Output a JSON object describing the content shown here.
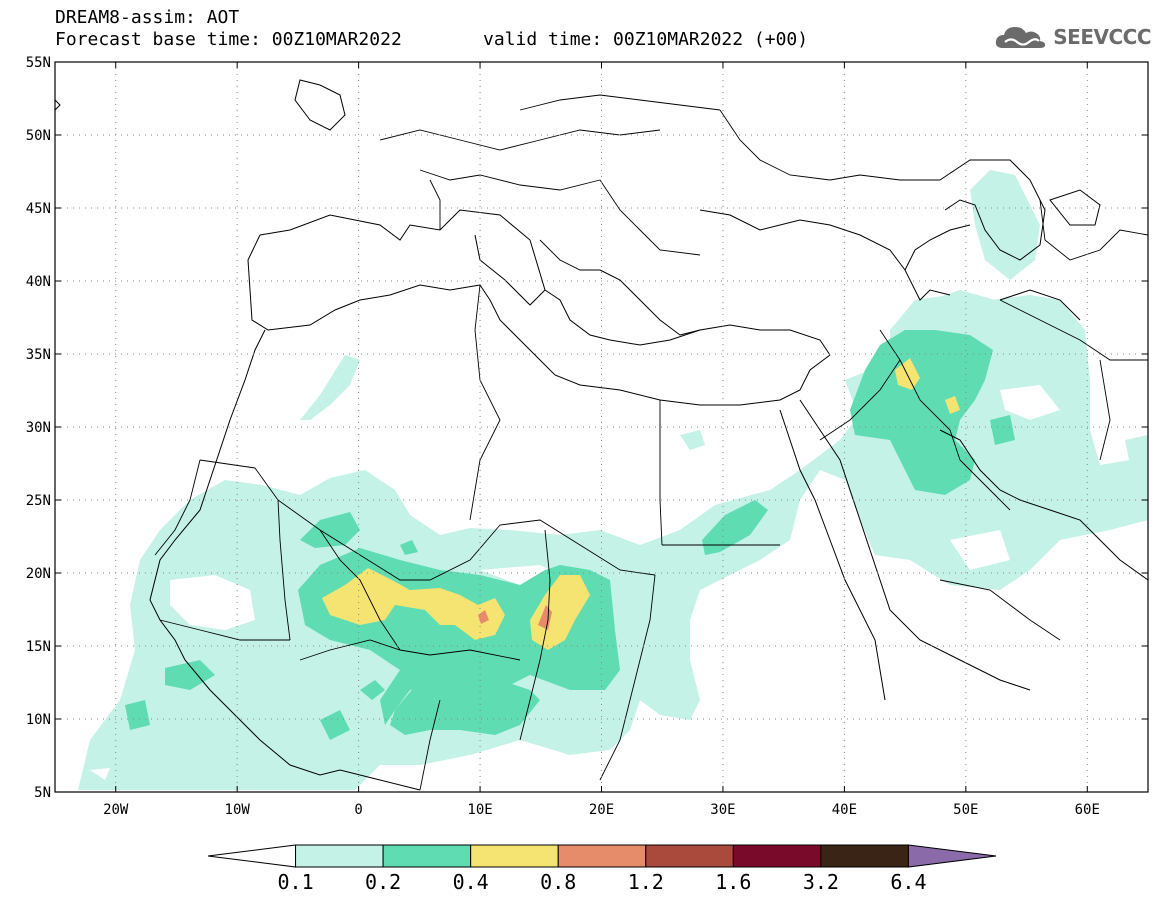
{
  "title": {
    "line1": "DREAM8-assim: AOT",
    "line2": "Forecast base time: 00Z10MAR2022",
    "line3": "valid time: 00Z10MAR2022 (+00)"
  },
  "logo": {
    "text": "SEEVCCC",
    "icon": "cloud-icon"
  },
  "map": {
    "lat_range": [
      5,
      55
    ],
    "lon_range": [
      -25,
      65
    ],
    "lat_ticks": [
      "55N",
      "50N",
      "45N",
      "40N",
      "35N",
      "30N",
      "25N",
      "20N",
      "15N",
      "10N",
      "5N"
    ],
    "lon_ticks": [
      "20W",
      "10W",
      "0",
      "10E",
      "20E",
      "30E",
      "40E",
      "50E",
      "60E"
    ],
    "grid": true
  },
  "colorbar": {
    "labels": [
      "0.1",
      "0.2",
      "0.4",
      "0.8",
      "1.2",
      "1.6",
      "3.2",
      "6.4"
    ],
    "colors": [
      "#ffffff",
      "#c4f2e6",
      "#5fdcb2",
      "#f5e372",
      "#e68c6a",
      "#a94a3c",
      "#7a0a2a",
      "#3a2416",
      "#8a6aa8"
    ]
  }
}
